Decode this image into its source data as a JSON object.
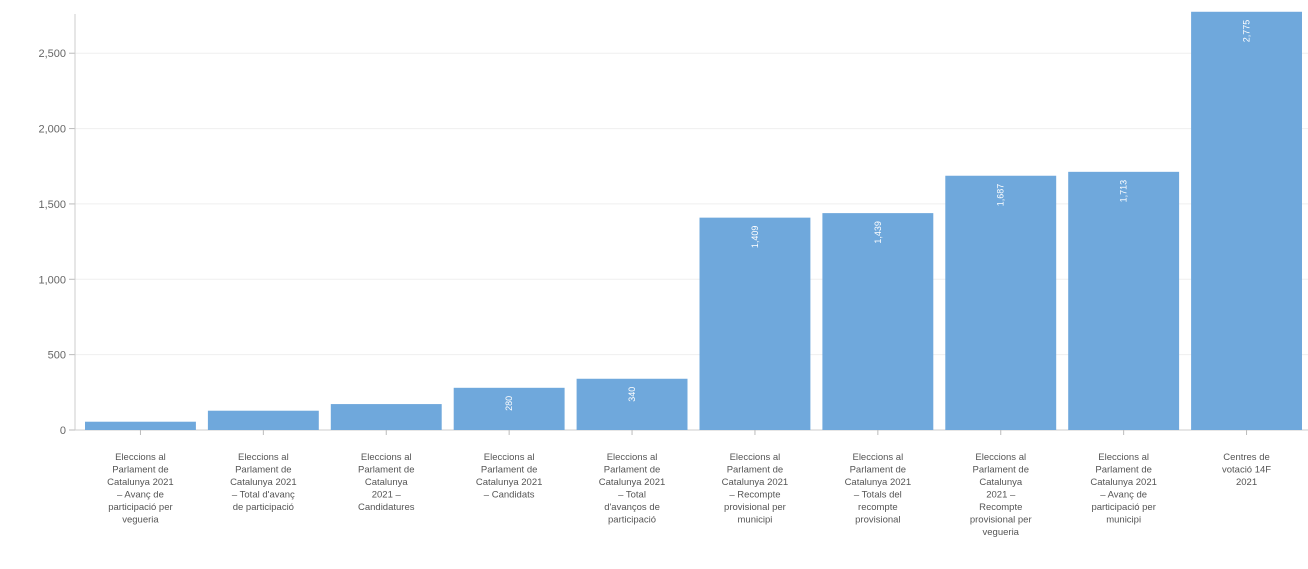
{
  "chart_data": {
    "type": "bar",
    "title": "",
    "xlabel": "",
    "ylabel": "",
    "ylim": [
      0,
      2800
    ],
    "yticks": [
      0,
      500,
      1000,
      1500,
      2000,
      2500
    ],
    "ytick_labels": [
      "0",
      "500",
      "1,000",
      "1,500",
      "2,000",
      "2,500"
    ],
    "grid": true,
    "bar_color": "#6fa8dc",
    "categories": [
      "Eleccions al Parlament de Catalunya 2021 – Avanç de participació per vegueria",
      "Eleccions al Parlament de Catalunya 2021 – Total d'avanç de participació",
      "Eleccions al Parlament de Catalunya 2021 – Candidatures",
      "Eleccions al Parlament de Catalunya 2021 – Candidats",
      "Eleccions al Parlament de Catalunya 2021 – Total d'avanços de participació",
      "Eleccions al Parlament de Catalunya 2021 – Recompte provisional per municipi",
      "Eleccions al Parlament de Catalunya 2021 – Totals del recompte provisional",
      "Eleccions al Parlament de Catalunya 2021 – Recompte provisional per vegueria",
      "Eleccions al Parlament de Catalunya 2021 – Avanç de participació per municipi",
      "Centres de votació 14F 2021"
    ],
    "category_lines": [
      [
        "Eleccions al",
        "Parlament de",
        "Catalunya 2021",
        "– Avanç de",
        "participació per",
        "vegueria"
      ],
      [
        "Eleccions al",
        "Parlament de",
        "Catalunya 2021",
        "– Total d'avanç",
        "de participació"
      ],
      [
        "Eleccions al",
        "Parlament de",
        "Catalunya",
        "2021 –",
        "Candidatures"
      ],
      [
        "Eleccions al",
        "Parlament de",
        "Catalunya 2021",
        "– Candidats"
      ],
      [
        "Eleccions al",
        "Parlament de",
        "Catalunya 2021",
        "– Total",
        "d'avanços de",
        "participació"
      ],
      [
        "Eleccions al",
        "Parlament de",
        "Catalunya 2021",
        "– Recompte",
        "provisional per",
        "municipi"
      ],
      [
        "Eleccions al",
        "Parlament de",
        "Catalunya 2021",
        "– Totals del",
        "recompte",
        "provisional"
      ],
      [
        "Eleccions al",
        "Parlament de",
        "Catalunya",
        "2021 –",
        "Recompte",
        "provisional per",
        "vegueria"
      ],
      [
        "Eleccions al",
        "Parlament de",
        "Catalunya 2021",
        "– Avanç de",
        "participació per",
        "municipi"
      ],
      [
        "Centres de",
        "votació 14F",
        "2021"
      ]
    ],
    "values": [
      55,
      128,
      172,
      280,
      340,
      1409,
      1439,
      1687,
      1713,
      2775
    ],
    "data_labels": [
      "",
      "",
      "",
      "280",
      "340",
      "1,409",
      "1,439",
      "1,687",
      "1,713",
      "2,775"
    ]
  }
}
